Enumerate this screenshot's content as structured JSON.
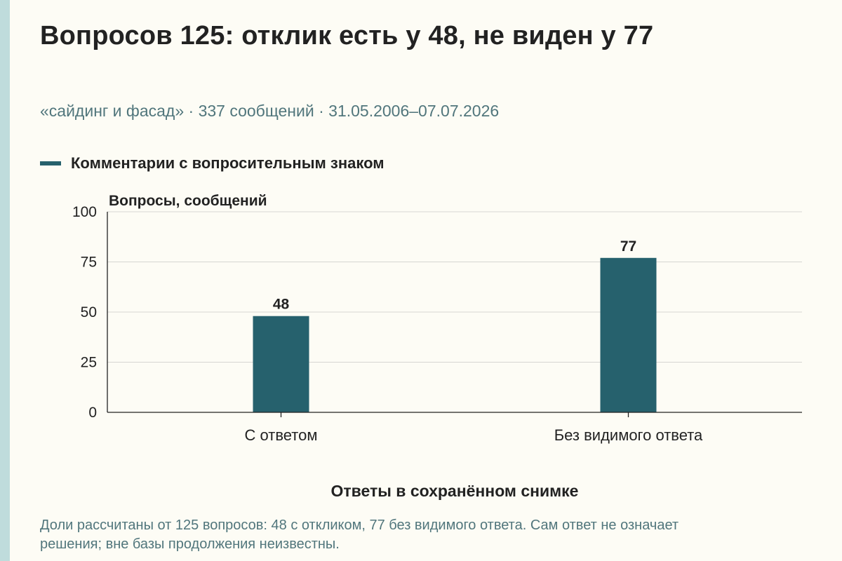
{
  "title": "Вопросов 125: отклик есть у 48, не виден у 77",
  "subtitle": "«сайдинг и фасад» · 337 сообщений · 31.05.2006–07.07.2026",
  "legend": {
    "label": "Комментарии с вопросительным знаком"
  },
  "footnote": "Доли рассчитаны от 125 вопросов: 48 с откликом, 77 без видимого ответа. Сам ответ не означает решения; вне базы продолжения неизвестны.",
  "colors": {
    "bar": "#26616d",
    "grid": "#d6d6d2",
    "axis": "#222222",
    "accent_strip": "#bfdcdc",
    "background": "#fdfcf5"
  },
  "chart_data": {
    "type": "bar",
    "categories": [
      "С ответом",
      "Без видимого ответа"
    ],
    "series": [
      {
        "name": "Комментарии с вопросительным знаком",
        "values": [
          48,
          77
        ]
      }
    ],
    "xlabel": "Ответы в сохранённом снимке",
    "ylabel": "Вопросы, сообщений",
    "ylim": [
      0,
      100
    ],
    "yticks": [
      0,
      25,
      50,
      75,
      100
    ],
    "grid": true,
    "legend_position": "top-left",
    "data_labels": true
  }
}
